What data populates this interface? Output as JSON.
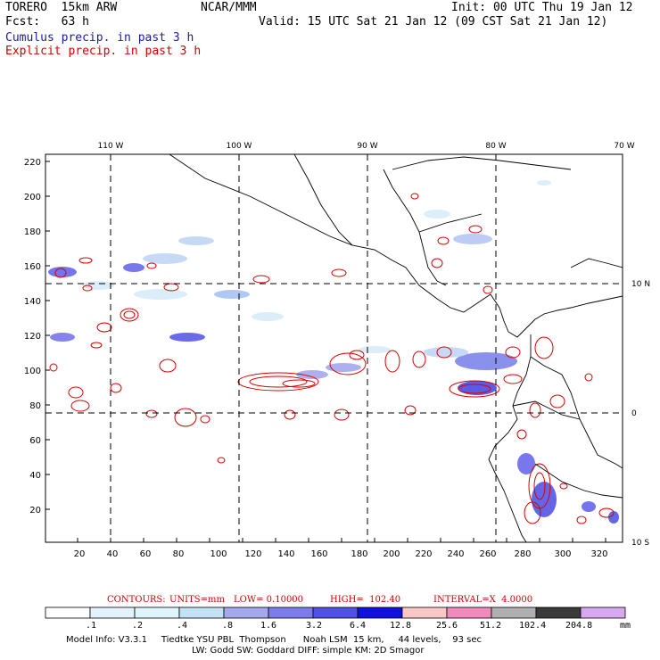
{
  "header": {
    "model_name": "TORERO  15km ARW",
    "org": "NCAR/MMM",
    "init": "Init: 00 UTC Thu 19 Jan 12",
    "fcst": "Fcst:   63 h",
    "valid": "Valid: 15 UTC Sat 21 Jan 12 (09 CST Sat 21 Jan 12)",
    "field1": "Cumulus precip. in past 3 h",
    "field2": "Explicit precip. in past 3 h"
  },
  "map": {
    "top_lon_labels": [
      "110 W",
      "100 W",
      "90 W",
      "80 W",
      "70 W"
    ],
    "right_lat_labels": [
      "10 N",
      "0",
      "10 S"
    ],
    "left_ticks": [
      "220",
      "200",
      "180",
      "160",
      "140",
      "120",
      "100",
      "80",
      "60",
      "40",
      "20"
    ],
    "bottom_ticks": [
      "20",
      "40",
      "60",
      "80",
      "100",
      "120",
      "140",
      "160",
      "180",
      "200",
      "220",
      "240",
      "260",
      "280",
      "300",
      "320"
    ]
  },
  "contours_line": {
    "label": "CONTOURS:",
    "units": "UNITS=mm",
    "low": "LOW= 0.10000",
    "high": "HIGH=  102.40",
    "interval": "INTERVAL=X  4.0000"
  },
  "colorbar": {
    "labels": [
      ".1",
      ".2",
      ".4",
      ".8",
      "1.6",
      "3.2",
      "6.4",
      "12.8",
      "25.6",
      "51.2",
      "102.4",
      "204.8"
    ],
    "unit": "mm",
    "colors": [
      "#ffffff",
      "#e3f2fb",
      "#ddf5fb",
      "#c2e3f5",
      "#a4a8ec",
      "#7c7ceb",
      "#5050e5",
      "#1010e0",
      "#fac6c6",
      "#ef8cbc",
      "#b0b0b0",
      "#3a3a3a",
      "#d8a8f0"
    ]
  },
  "model_info": {
    "line1": "Model Info: V3.3.1     Tiedtke YSU PBL  Thompson      Noah LSM  15 km,     44 levels,    93 sec",
    "line2": "LW: Godd SW: Goddard DIFF: simple KM: 2D Smagor"
  }
}
